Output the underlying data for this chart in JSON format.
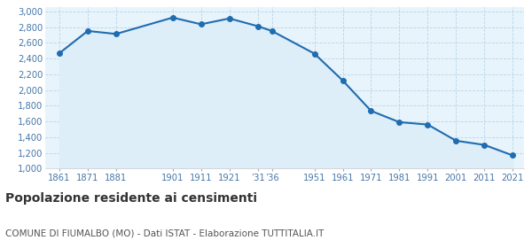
{
  "years": [
    1861,
    1871,
    1881,
    1901,
    1911,
    1921,
    1931,
    1936,
    1951,
    1961,
    1971,
    1981,
    1991,
    2001,
    2011,
    2021
  ],
  "population": [
    2468,
    2751,
    2713,
    2921,
    2836,
    2910,
    2812,
    2751,
    2463,
    2121,
    1735,
    1591,
    1561,
    1355,
    1302,
    1168
  ],
  "line_color": "#1f6cb0",
  "fill_color": "#ddeef8",
  "marker_color": "#1f6cb0",
  "background_color": "#e8f4fb",
  "grid_color": "#b8d4e8",
  "title": "Popolazione residente ai censimenti",
  "subtitle": "COMUNE DI FIUMALBO (MO) - Dati ISTAT - Elaborazione TUTTITALIA.IT",
  "ylim": [
    1000,
    3050
  ],
  "yticks": [
    1000,
    1200,
    1400,
    1600,
    1800,
    2000,
    2200,
    2400,
    2600,
    2800,
    3000
  ],
  "title_fontsize": 10,
  "subtitle_fontsize": 7.5,
  "tick_label_color": "#4477aa"
}
